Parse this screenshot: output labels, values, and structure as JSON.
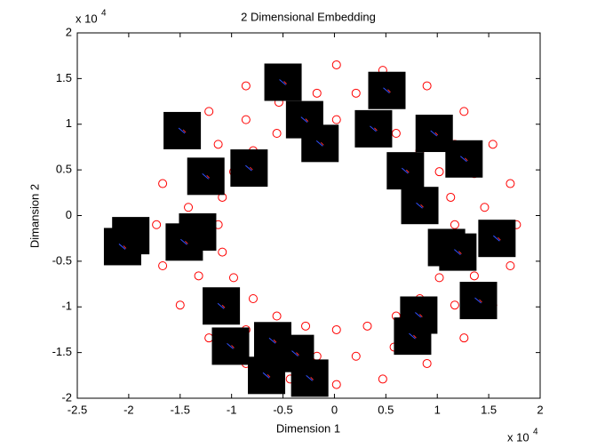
{
  "chart_data": {
    "type": "scatter",
    "title": "2 Dimensional Embedding",
    "x_label": "Dimension 1",
    "y_label": "Dimansion 2",
    "axis_multiplier": {
      "base": "x 10",
      "power": "4"
    },
    "xlim": [
      -2.5,
      2
    ],
    "ylim": [
      -2,
      2
    ],
    "xticks": [
      -2.5,
      -2,
      -1.5,
      -1,
      -0.5,
      0,
      0.5,
      1,
      1.5,
      2
    ],
    "yticks": [
      -2,
      -1.5,
      -1,
      -0.5,
      0,
      0.5,
      1,
      1.5,
      2
    ],
    "grid": false,
    "points": {
      "color": "#ff0000",
      "x": [
        1.17,
        1.13,
        1.02,
        0.83,
        0.6,
        0.32,
        0.02,
        -0.28,
        -0.56,
        -0.79,
        -0.98,
        -1.09,
        -1.13,
        -1.09,
        -0.98,
        -0.79,
        -0.56,
        -0.28,
        0.02,
        0.32,
        0.6,
        0.83,
        1.02,
        1.13,
        1.77,
        1.71,
        1.54,
        1.26,
        0.9,
        0.47,
        0.02,
        -0.43,
        -0.86,
        -1.22,
        -1.5,
        -1.67,
        -1.73,
        -1.67,
        -1.5,
        -1.22,
        -0.86,
        -0.43,
        0.02,
        0.47,
        0.9,
        1.26,
        1.54,
        1.71,
        1.46,
        1.36,
        1.17,
        0.9,
        0.58,
        0.21,
        -0.17,
        -0.54,
        -0.86,
        -1.13,
        -1.32,
        -1.42,
        -1.42,
        -1.32,
        -1.13,
        -0.86,
        -0.54,
        -0.17,
        0.21,
        0.58,
        0.9,
        1.17,
        1.36,
        1.46
      ],
      "y": [
        -0.1,
        0.2,
        0.48,
        0.71,
        0.9,
        1.01,
        1.05,
        1.01,
        0.9,
        0.71,
        0.48,
        0.2,
        -0.1,
        -0.4,
        -0.68,
        -0.91,
        -1.1,
        -1.21,
        -1.25,
        -1.21,
        -1.1,
        -0.91,
        -0.68,
        -0.4,
        -0.1,
        0.35,
        0.78,
        1.14,
        1.42,
        1.59,
        1.65,
        1.59,
        1.42,
        1.14,
        0.78,
        0.35,
        -0.1,
        -0.55,
        -0.98,
        -1.34,
        -1.62,
        -1.79,
        -1.85,
        -1.79,
        -1.62,
        -1.34,
        -0.98,
        -0.55,
        0.09,
        0.46,
        0.78,
        1.05,
        1.24,
        1.34,
        1.34,
        1.24,
        1.05,
        0.78,
        0.46,
        0.09,
        -0.29,
        -0.66,
        -0.98,
        -1.25,
        -1.44,
        -1.54,
        -1.54,
        -1.44,
        -1.25,
        -0.98,
        -0.66,
        -0.29
      ]
    },
    "thumbnails": {
      "color": "#000000",
      "x": [
        -0.5,
        0.51,
        -0.29,
        -1.48,
        0.38,
        0.97,
        -0.14,
        1.26,
        -0.83,
        -1.25,
        0.69,
        0.83,
        -1.98,
        -2.06,
        -1.33,
        -1.46,
        1.58,
        1.09,
        1.2,
        -1.1,
        1.4,
        0.82,
        0.76,
        -1.01,
        -0.6,
        -0.38,
        -0.66,
        -0.24
      ],
      "y": [
        1.46,
        1.37,
        1.05,
        0.93,
        0.95,
        0.9,
        0.79,
        0.62,
        0.52,
        0.43,
        0.49,
        0.11,
        -0.22,
        -0.34,
        -0.18,
        -0.29,
        -0.25,
        -0.35,
        -0.4,
        -0.99,
        -0.93,
        -1.09,
        -1.32,
        -1.43,
        -1.37,
        -1.51,
        -1.75,
        -1.78
      ]
    }
  }
}
